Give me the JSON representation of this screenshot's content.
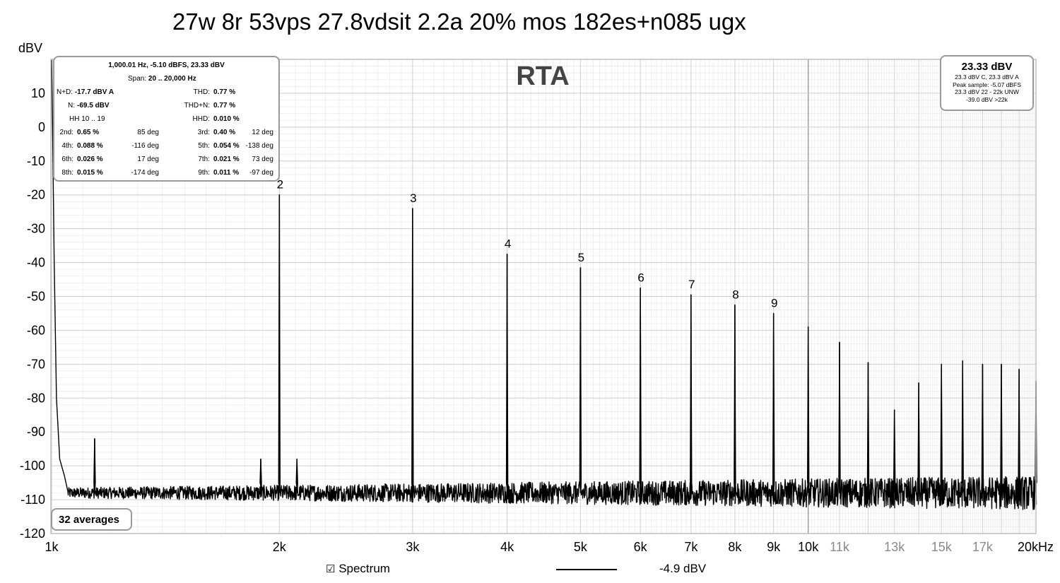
{
  "chart_data": {
    "type": "line",
    "title": "27w 8r 53vps 27.8vdsit 2.2a 20% mos 182es+n085 ugx",
    "watermark": "RTA",
    "ylabel": "dBV",
    "xlabel": "",
    "x_scale": "log",
    "xlim": [
      1000,
      20000
    ],
    "ylim": [
      -120,
      20
    ],
    "y_ticks": [
      10,
      0,
      -10,
      -20,
      -30,
      -40,
      -50,
      -60,
      -70,
      -80,
      -90,
      -100,
      -110,
      -120
    ],
    "x_ticks": [
      {
        "value": 1000,
        "label": "1k",
        "muted": false
      },
      {
        "value": 2000,
        "label": "2k",
        "muted": false
      },
      {
        "value": 3000,
        "label": "3k",
        "muted": false
      },
      {
        "value": 4000,
        "label": "4k",
        "muted": false
      },
      {
        "value": 5000,
        "label": "5k",
        "muted": false
      },
      {
        "value": 6000,
        "label": "6k",
        "muted": false
      },
      {
        "value": 7000,
        "label": "7k",
        "muted": false
      },
      {
        "value": 8000,
        "label": "8k",
        "muted": false
      },
      {
        "value": 9000,
        "label": "9k",
        "muted": false
      },
      {
        "value": 10000,
        "label": "10k",
        "muted": false
      },
      {
        "value": 11000,
        "label": "11k",
        "muted": true
      },
      {
        "value": 13000,
        "label": "13k",
        "muted": true
      },
      {
        "value": 15000,
        "label": "15k",
        "muted": true
      },
      {
        "value": 17000,
        "label": "17k",
        "muted": true
      },
      {
        "value": 20000,
        "label": "20kHz",
        "muted": false
      }
    ],
    "grid": true,
    "noise_floor": -108,
    "fundamental": {
      "freq": 1000,
      "level": 23.33
    },
    "peaks": [
      {
        "freq": 1140,
        "level": -92,
        "label": ""
      },
      {
        "freq": 1890,
        "level": -98,
        "label": ""
      },
      {
        "freq": 2000,
        "level": -20,
        "label": "2"
      },
      {
        "freq": 2110,
        "level": -98,
        "label": ""
      },
      {
        "freq": 3000,
        "level": -24,
        "label": "3"
      },
      {
        "freq": 4000,
        "level": -37.5,
        "label": "4"
      },
      {
        "freq": 5000,
        "level": -41.5,
        "label": "5"
      },
      {
        "freq": 6000,
        "level": -47.5,
        "label": "6"
      },
      {
        "freq": 7000,
        "level": -49.5,
        "label": "7"
      },
      {
        "freq": 8000,
        "level": -52.5,
        "label": "8"
      },
      {
        "freq": 9000,
        "level": -55,
        "label": "9"
      },
      {
        "freq": 10000,
        "level": -59,
        "label": ""
      },
      {
        "freq": 11000,
        "level": -63.5,
        "label": ""
      },
      {
        "freq": 12000,
        "level": -69.5,
        "label": ""
      },
      {
        "freq": 13000,
        "level": -83.5,
        "label": ""
      },
      {
        "freq": 14000,
        "level": -75.5,
        "label": ""
      },
      {
        "freq": 15000,
        "level": -70,
        "label": ""
      },
      {
        "freq": 16000,
        "level": -69,
        "label": ""
      },
      {
        "freq": 17000,
        "level": -70,
        "label": ""
      },
      {
        "freq": 18000,
        "level": -70,
        "label": ""
      },
      {
        "freq": 19000,
        "level": -71.5,
        "label": ""
      },
      {
        "freq": 20000,
        "level": -75,
        "label": ""
      }
    ],
    "series": [
      {
        "name": "Spectrum",
        "legend_value": "-4.9 dBV",
        "checked": true,
        "color": "#000000"
      }
    ]
  },
  "info_panel": {
    "header": "1,000.01 Hz, -5.10 dBFS, 23.33 dBV",
    "span_label": "Span:",
    "span_value": "20 .. 20,000 Hz",
    "nd_label": "N+D:",
    "nd_value": "-17.7 dBV A",
    "thd_label": "THD:",
    "thd_value": "0.77 %",
    "n_label": "N:",
    "n_value": "-69.5 dBV",
    "thdn_label": "THD+N:",
    "thdn_value": "0.77 %",
    "hh_label": "HH 10 .. 19",
    "hhd_label": "HHD:",
    "hhd_value": "0.010 %",
    "harmonics": [
      {
        "label": "2nd:",
        "value": "0.65 %",
        "phase": "85 deg"
      },
      {
        "label": "3rd:",
        "value": "0.40 %",
        "phase": "12 deg"
      },
      {
        "label": "4th:",
        "value": "0.088 %",
        "phase": "-116 deg"
      },
      {
        "label": "5th:",
        "value": "0.054 %",
        "phase": "-138 deg"
      },
      {
        "label": "6th:",
        "value": "0.026 %",
        "phase": "17 deg"
      },
      {
        "label": "7th:",
        "value": "0.021 %",
        "phase": "73 deg"
      },
      {
        "label": "8th:",
        "value": "0.015 %",
        "phase": "-174 deg"
      },
      {
        "label": "9th:",
        "value": "0.011 %",
        "phase": "-97 deg"
      }
    ]
  },
  "level_panel": {
    "main": "23.33 dBV",
    "line1": "23.3 dBV C, 23.3 dBV A",
    "line2": "Peak sample: -5.07 dBFS",
    "line3": "23.3 dBV 22 - 22k UNW",
    "line4": "-39.0 dBV >22k"
  },
  "averages_label": "32 averages",
  "legend": {
    "checkbox_glyph": "☑",
    "label": "Spectrum",
    "value": "-4.9 dBV"
  }
}
